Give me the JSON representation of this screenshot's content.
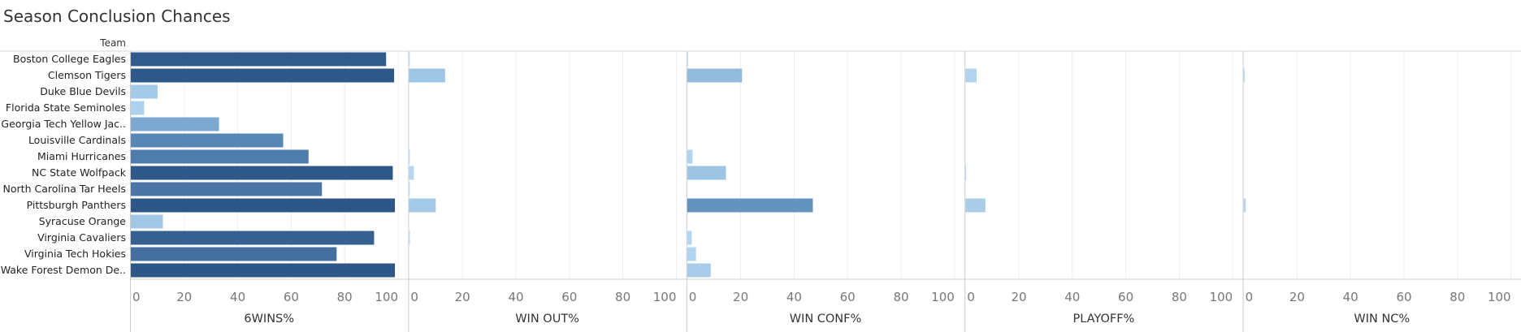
{
  "chart_data": {
    "type": "bar",
    "orientation": "horizontal",
    "title": "Season Conclusion Chances",
    "row_header": "Team",
    "teams": [
      "Boston College Eagles",
      "Clemson Tigers",
      "Duke Blue Devils",
      "Florida State Seminoles",
      "Georgia Tech Yellow Jac..",
      "Louisville Cardinals",
      "Miami Hurricanes",
      "NC State Wolfpack",
      "North Carolina Tar Heels",
      "Pittsburgh Panthers",
      "Syracuse Orange",
      "Virginia Cavaliers",
      "Virginia Tech Hokies",
      "Wake Forest Demon De.."
    ],
    "panels": [
      {
        "name": "6WINS%",
        "values": [
          95.5,
          98.5,
          10,
          5,
          33,
          57,
          66.5,
          98,
          71.5,
          98.8,
          12,
          91,
          77,
          98.8
        ]
      },
      {
        "name": "WIN OUT%",
        "values": [
          0.2,
          13.5,
          0,
          0,
          0,
          0,
          0.3,
          1.8,
          0.3,
          10,
          0,
          0.2,
          0,
          0
        ]
      },
      {
        "name": "WIN CONF%",
        "values": [
          0.2,
          20.5,
          0,
          0,
          0,
          0,
          2,
          14.5,
          0,
          47,
          0,
          1.7,
          3.3,
          8.8
        ]
      },
      {
        "name": "PLAYOFF%",
        "values": [
          0,
          4.2,
          0,
          0,
          0,
          0,
          0,
          0.2,
          0,
          7.5,
          0,
          0,
          0,
          0
        ]
      },
      {
        "name": "WIN NC%",
        "values": [
          0,
          0.4,
          0,
          0,
          0,
          0,
          0,
          0,
          0,
          0.8,
          0,
          0,
          0,
          0
        ]
      }
    ],
    "x_range": [
      0,
      100
    ],
    "x_ticks": [
      "0",
      "20",
      "40",
      "60",
      "80",
      "100"
    ],
    "grid": true,
    "color_scale": {
      "low": "#b7d9f2",
      "mid": "#5f8fbd",
      "high": "#2c5686"
    }
  }
}
